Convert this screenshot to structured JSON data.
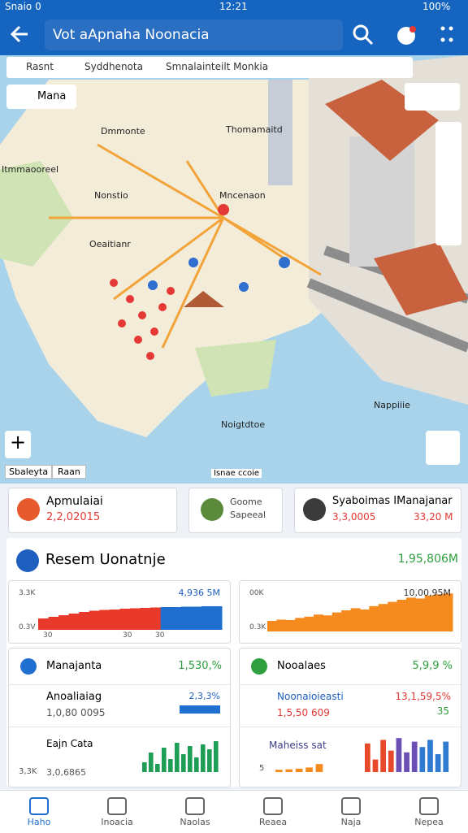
{
  "status_bar": {
    "left": "Snaio 0",
    "time": "12:21",
    "battery": "100%"
  },
  "search": {
    "text": "Vot aApnaha Noonacia"
  },
  "map": {
    "tabs": [
      "Rasnt",
      "Syddhenota",
      "Smnalainteilt Monkia"
    ],
    "chip": "Mana",
    "labels": [
      "Dmmonte",
      "Thomamaitd",
      "Itmmaooreel",
      "Nonstio",
      "Mncenaon",
      "Oeaitianr",
      "Noigtdtoe",
      "Nappiiie"
    ],
    "bottom_chips": [
      "Sbaleyta",
      "Raan"
    ],
    "scale": "Isnae ccoie"
  },
  "cards": [
    {
      "name": "Apmulaiai",
      "value": "2,2,02015"
    },
    {
      "name": "Goome",
      "value": "Sapeeal"
    },
    {
      "name": "Syaboimas IManajanar",
      "value": "3,3,0005",
      "extra": "33,20 M"
    }
  ],
  "panel": {
    "title": "Resem Uonatnje",
    "total": "1,95,806M"
  },
  "mini_charts": [
    {
      "value_label": "4,936 5M",
      "axis_labels": [
        "3.3K",
        "0.3V"
      ],
      "x_labels": [
        "30",
        "30",
        "30"
      ],
      "ylim": [
        0,
        100
      ],
      "series": [
        {
          "color": "#e8392a",
          "values": [
            28,
            32,
            36,
            40,
            44,
            47,
            49,
            50,
            52,
            53,
            54,
            55
          ]
        },
        {
          "color": "#1f6fd1",
          "values": [
            56,
            56,
            57,
            57,
            58,
            58
          ]
        }
      ]
    },
    {
      "value_label": "10,00,95M",
      "axis_labels": [
        "00K",
        "0.3K"
      ],
      "ylim": [
        0,
        100
      ],
      "series": [
        {
          "color": "#f58a1f",
          "values": [
            25,
            28,
            27,
            32,
            35,
            40,
            38,
            45,
            50,
            55,
            52,
            60,
            65,
            70,
            75,
            80,
            78,
            85,
            88,
            90
          ]
        }
      ]
    },
    {
      "ylim": [
        0,
        100
      ],
      "series": [
        {
          "color": "#1e9e55",
          "values": [
            30,
            60,
            25,
            75,
            40,
            90,
            55,
            80,
            45,
            85,
            70,
            95
          ]
        }
      ]
    },
    {
      "ylim": [
        0,
        100
      ],
      "series": [
        {
          "color": "#f58a1f",
          "values": [
            10,
            12,
            15,
            20,
            35
          ]
        }
      ]
    },
    {
      "ylim": [
        0,
        100
      ],
      "series": [
        {
          "color": "#e8492a",
          "values": [
            80,
            35,
            90,
            60
          ]
        },
        {
          "color": "#6b4fb5",
          "values": [
            95,
            55,
            85
          ]
        },
        {
          "color": "#2f7bd1",
          "values": [
            70,
            90,
            50,
            85
          ]
        }
      ]
    }
  ],
  "rows": {
    "left": [
      {
        "name": "Manajanta",
        "value": "1,530,%"
      },
      {
        "name": "Anoaliaiag",
        "value": "1,0,80 0095",
        "extra": "2,3,3%"
      },
      {
        "name": "Eajn Cata",
        "value": "3,0,6865",
        "extra": "3,3K"
      }
    ],
    "right": [
      {
        "name": "Nooalaes",
        "value": "5,9,9 %"
      },
      {
        "name": "Noonaioieasti",
        "value": "1,5,50 609",
        "extra": "13,1,59,5%",
        "more": "35"
      },
      {
        "name": "Maheiss sat",
        "value": "5"
      }
    ]
  },
  "nav": [
    "Haho",
    "Inoacia",
    "Naolas",
    "Reaea",
    "Naja",
    "Nepea"
  ]
}
